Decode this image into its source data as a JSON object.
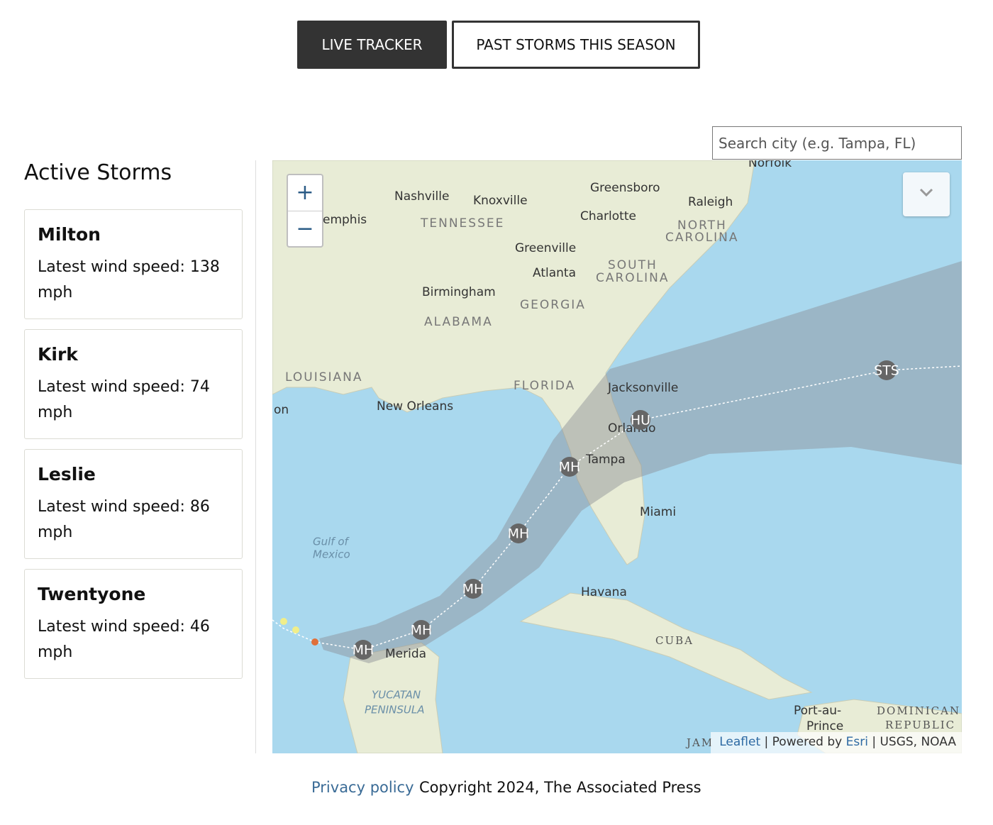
{
  "tabs": [
    "LIVE TRACKER",
    "PAST STORMS THIS SEASON"
  ],
  "search_placeholder": "Search city (e.g. Tampa, FL)",
  "sidebar": {
    "title": "Active Storms",
    "storms": [
      {
        "name": "Milton",
        "wind": "Latest wind speed: 138 mph"
      },
      {
        "name": "Kirk",
        "wind": "Latest wind speed: 74 mph"
      },
      {
        "name": "Leslie",
        "wind": "Latest wind speed: 86 mph"
      },
      {
        "name": "Twentyone",
        "wind": "Latest wind speed: 46 mph"
      }
    ]
  },
  "map": {
    "zoom": [
      "+",
      "−"
    ],
    "places": [
      "Nashville",
      "Knoxville",
      "Greensboro",
      "Raleigh",
      "Norfolk",
      "emphis",
      "TENNESSEE",
      "Charlotte",
      "NORTH",
      "CAROLINA",
      "Greenville",
      "Atlanta",
      "SOUTH",
      "CAROLINA",
      "Birmingham",
      "GEORGIA",
      "ALABAMA",
      "LOUISIANA",
      "FLORIDA",
      "Jacksonville",
      "New Orleans",
      "on",
      "Orlando",
      "Tampa",
      "Miami",
      "Gulf of",
      "Mexico",
      "Havana",
      "CUBA",
      "Merida",
      "YUCATAN",
      "PENINSULA",
      "Port-au-",
      "Prince",
      "DOMINICAN",
      "REPUBLIC",
      "JAM"
    ],
    "markers": [
      "MH",
      "MH",
      "MH",
      "MH",
      "MH",
      "HU",
      "STS"
    ],
    "attribution": {
      "leaflet": "Leaflet",
      "powered": "| Powered by",
      "esri": "Esri",
      "sources": "| USGS, NOAA"
    }
  },
  "footer": {
    "privacy": "Privacy policy",
    "copyright": "Copyright 2024, The Associated Press"
  }
}
